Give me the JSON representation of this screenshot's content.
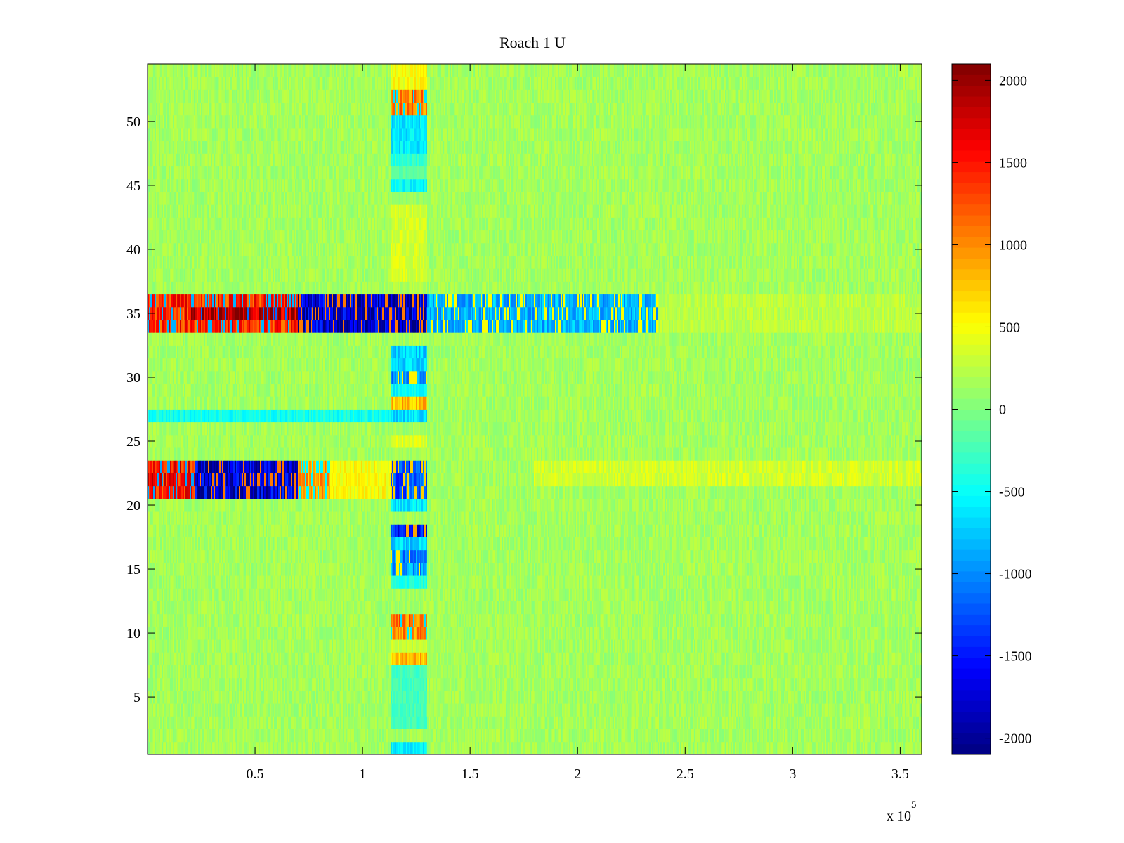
{
  "chart_data": {
    "type": "heatmap",
    "title": "Roach 1 U",
    "xlabel": "",
    "ylabel": "",
    "x_range": [
      0,
      360000
    ],
    "y_range": [
      0.5,
      54.5
    ],
    "rows": 54,
    "x_multiplier_label": "x 10",
    "x_multiplier_exponent": "5",
    "x_ticks": [
      {
        "value": 50000,
        "label": "0.5"
      },
      {
        "value": 100000,
        "label": "1"
      },
      {
        "value": 150000,
        "label": "1.5"
      },
      {
        "value": 200000,
        "label": "2"
      },
      {
        "value": 250000,
        "label": "2.5"
      },
      {
        "value": 300000,
        "label": "3"
      },
      {
        "value": 350000,
        "label": "3.5"
      }
    ],
    "y_ticks": [
      {
        "value": 5,
        "label": "5"
      },
      {
        "value": 10,
        "label": "10"
      },
      {
        "value": 15,
        "label": "15"
      },
      {
        "value": 20,
        "label": "20"
      },
      {
        "value": 25,
        "label": "25"
      },
      {
        "value": 30,
        "label": "30"
      },
      {
        "value": 35,
        "label": "35"
      },
      {
        "value": 40,
        "label": "40"
      },
      {
        "value": 45,
        "label": "45"
      },
      {
        "value": 50,
        "label": "50"
      }
    ],
    "colormap": "jet",
    "color_range": [
      -2100,
      2100
    ],
    "colorbar_ticks": [
      {
        "value": 2000,
        "label": "2000"
      },
      {
        "value": 1500,
        "label": "1500"
      },
      {
        "value": 1000,
        "label": "1000"
      },
      {
        "value": 500,
        "label": "500"
      },
      {
        "value": 0,
        "label": "0"
      },
      {
        "value": -500,
        "label": "-500"
      },
      {
        "value": -1000,
        "label": "-1000"
      },
      {
        "value": -1500,
        "label": "-1500"
      },
      {
        "value": -2000,
        "label": "-2000"
      }
    ],
    "background_level": 150,
    "regions": [
      {
        "rows": [
          34,
          36
        ],
        "x": [
          0,
          70000
        ],
        "level": 1400
      },
      {
        "rows": [
          35,
          35
        ],
        "x": [
          20000,
          70000
        ],
        "level": 1900
      },
      {
        "rows": [
          34,
          36
        ],
        "x": [
          70000,
          130000
        ],
        "level": -1800
      },
      {
        "rows": [
          34,
          36
        ],
        "x": [
          130000,
          237000
        ],
        "level": -850
      },
      {
        "rows": [
          34,
          36
        ],
        "x": [
          237000,
          360000
        ],
        "level": 250
      },
      {
        "rows": [
          21,
          23
        ],
        "x": [
          0,
          22000
        ],
        "level": 1500
      },
      {
        "rows": [
          21,
          23
        ],
        "x": [
          22000,
          70000
        ],
        "level": -1800
      },
      {
        "rows": [
          21,
          23
        ],
        "x": [
          70000,
          85000
        ],
        "level": 900
      },
      {
        "rows": [
          21,
          23
        ],
        "x": [
          85000,
          113000
        ],
        "level": 500
      },
      {
        "rows": [
          21,
          23
        ],
        "x": [
          113000,
          130000
        ],
        "level": -1200
      },
      {
        "rows": [
          22,
          23
        ],
        "x": [
          180000,
          360000
        ],
        "level": 350
      },
      {
        "rows": [
          27,
          27
        ],
        "x": [
          0,
          113000
        ],
        "level": -450
      },
      {
        "rows": [
          53,
          54
        ],
        "x": [
          113000,
          130000
        ],
        "level": 500
      },
      {
        "rows": [
          51,
          52
        ],
        "x": [
          113000,
          130000
        ],
        "level": 1050
      },
      {
        "rows": [
          48,
          50
        ],
        "x": [
          113000,
          130000
        ],
        "level": -600
      },
      {
        "rows": [
          47,
          47
        ],
        "x": [
          113000,
          130000
        ],
        "level": -350
      },
      {
        "rows": [
          46,
          46
        ],
        "x": [
          113000,
          130000
        ],
        "level": -150
      },
      {
        "rows": [
          45,
          45
        ],
        "x": [
          113000,
          130000
        ],
        "level": -500
      },
      {
        "rows": [
          44,
          44
        ],
        "x": [
          113000,
          130000
        ],
        "level": 100
      },
      {
        "rows": [
          38,
          43
        ],
        "x": [
          113000,
          130000
        ],
        "level": 350
      },
      {
        "rows": [
          37,
          37
        ],
        "x": [
          113000,
          130000
        ],
        "level": 200
      },
      {
        "rows": [
          31,
          32
        ],
        "x": [
          113000,
          130000
        ],
        "level": -700
      },
      {
        "rows": [
          30,
          30
        ],
        "x": [
          113000,
          130000
        ],
        "level": -950
      },
      {
        "rows": [
          29,
          29
        ],
        "x": [
          113000,
          130000
        ],
        "level": -500
      },
      {
        "rows": [
          28,
          28
        ],
        "x": [
          113000,
          130000
        ],
        "level": 800
      },
      {
        "rows": [
          27,
          27
        ],
        "x": [
          113000,
          130000
        ],
        "level": -650
      },
      {
        "rows": [
          25,
          25
        ],
        "x": [
          113000,
          130000
        ],
        "level": 400
      },
      {
        "rows": [
          24,
          24
        ],
        "x": [
          113000,
          130000
        ],
        "level": 150
      },
      {
        "rows": [
          20,
          20
        ],
        "x": [
          113000,
          130000
        ],
        "level": -600
      },
      {
        "rows": [
          18,
          18
        ],
        "x": [
          113000,
          130000
        ],
        "level": -1500
      },
      {
        "rows": [
          17,
          17
        ],
        "x": [
          113000,
          130000
        ],
        "level": -700
      },
      {
        "rows": [
          16,
          16
        ],
        "x": [
          113000,
          130000
        ],
        "level": -1000
      },
      {
        "rows": [
          15,
          15
        ],
        "x": [
          113000,
          130000
        ],
        "level": -950
      },
      {
        "rows": [
          14,
          14
        ],
        "x": [
          113000,
          130000
        ],
        "level": -400
      },
      {
        "rows": [
          11,
          11
        ],
        "x": [
          113000,
          130000
        ],
        "level": 1100
      },
      {
        "rows": [
          10,
          10
        ],
        "x": [
          113000,
          130000
        ],
        "level": 1000
      },
      {
        "rows": [
          9,
          9
        ],
        "x": [
          113000,
          130000
        ],
        "level": 300
      },
      {
        "rows": [
          8,
          8
        ],
        "x": [
          113000,
          130000
        ],
        "level": 800
      },
      {
        "rows": [
          7,
          7
        ],
        "x": [
          113000,
          130000
        ],
        "level": -250
      },
      {
        "rows": [
          3,
          6
        ],
        "x": [
          113000,
          130000
        ],
        "level": -250
      },
      {
        "rows": [
          1,
          1
        ],
        "x": [
          113000,
          130000
        ],
        "level": -550
      }
    ]
  }
}
